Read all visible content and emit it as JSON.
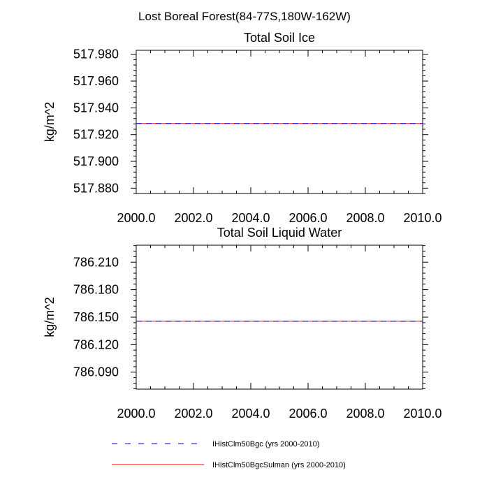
{
  "figure": {
    "title": "Lost Boreal Forest(84-77S,180W-162W)"
  },
  "chart_data": [
    {
      "type": "line",
      "title": "Total Soil Ice",
      "xlabel": "",
      "ylabel": "kg/m^2",
      "xlim": [
        2000.0,
        2010.0
      ],
      "ylim": [
        517.876,
        517.983
      ],
      "x_ticks": [
        "2000.0",
        "2002.0",
        "2004.0",
        "2006.0",
        "2008.0",
        "2010.0"
      ],
      "y_ticks": [
        "517.880",
        "517.900",
        "517.920",
        "517.940",
        "517.960",
        "517.980"
      ],
      "y_tick_values": [
        517.88,
        517.9,
        517.92,
        517.94,
        517.96,
        517.98
      ],
      "x": [
        2000.0,
        2010.0
      ],
      "series": [
        {
          "name": "IHistClm50Bgc (yrs 2000-2010)",
          "values": [
            517.9283,
            517.9283
          ],
          "color": "#0000ff",
          "dash": "dashed"
        },
        {
          "name": "IHistClm50BgcSulman (yrs 2000-2010)",
          "values": [
            517.9283,
            517.9283
          ],
          "color": "#ff0000",
          "dash": "solid"
        }
      ]
    },
    {
      "type": "line",
      "title": "Total Soil Liquid Water",
      "xlabel": "",
      "ylabel": "kg/m^2",
      "xlim": [
        2000.0,
        2010.0
      ],
      "ylim": [
        786.0715,
        786.2285
      ],
      "x_ticks": [
        "2000.0",
        "2002.0",
        "2004.0",
        "2006.0",
        "2008.0",
        "2010.0"
      ],
      "y_ticks": [
        "786.090",
        "786.120",
        "786.150",
        "786.180",
        "786.210"
      ],
      "y_tick_values": [
        786.09,
        786.12,
        786.15,
        786.18,
        786.21
      ],
      "x": [
        2000.0,
        2010.0
      ],
      "series": [
        {
          "name": "IHistClm50Bgc (yrs 2000-2010)",
          "values": [
            786.1455,
            786.1455
          ],
          "color": "#0000ff",
          "dash": "dashed"
        },
        {
          "name": "IHistClm50BgcSulman (yrs 2000-2010)",
          "values": [
            786.1455,
            786.1455
          ],
          "color": "#ff0000",
          "dash": "solid"
        }
      ]
    }
  ],
  "legend": {
    "placement": "bottom",
    "entries": [
      {
        "label": "IHistClm50Bgc (yrs 2000-2010)",
        "color": "#0000ff",
        "dash": "dashed"
      },
      {
        "label": "IHistClm50BgcSulman (yrs 2000-2010)",
        "color": "#ff0000",
        "dash": "solid"
      }
    ]
  }
}
